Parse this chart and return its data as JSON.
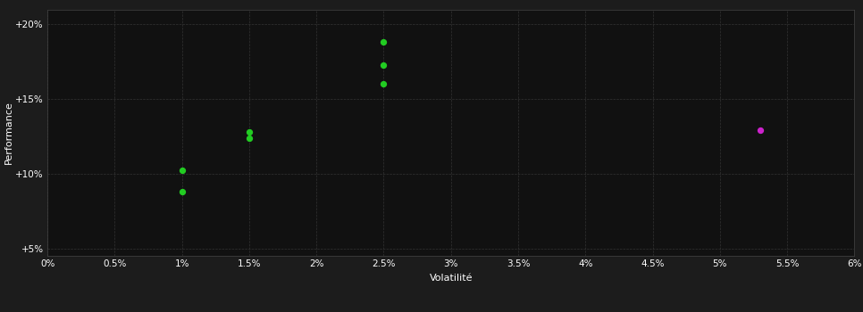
{
  "background_color": "#1c1c1c",
  "plot_bg_color": "#111111",
  "grid_color": "#333333",
  "text_color": "#ffffff",
  "green_points": [
    [
      0.01,
      0.102
    ],
    [
      0.01,
      0.088
    ],
    [
      0.015,
      0.128
    ],
    [
      0.015,
      0.124
    ],
    [
      0.025,
      0.188
    ],
    [
      0.025,
      0.173
    ],
    [
      0.025,
      0.16
    ]
  ],
  "magenta_points": [
    [
      0.053,
      0.129
    ]
  ],
  "green_color": "#22cc22",
  "magenta_color": "#cc22cc",
  "xlim": [
    0.0,
    0.06
  ],
  "ylim": [
    0.045,
    0.21
  ],
  "xticks": [
    0.0,
    0.005,
    0.01,
    0.015,
    0.02,
    0.025,
    0.03,
    0.035,
    0.04,
    0.045,
    0.05,
    0.055,
    0.06
  ],
  "yticks": [
    0.05,
    0.1,
    0.15,
    0.2
  ],
  "xlabel": "Volatilité",
  "ylabel": "Performance",
  "marker_size": 18
}
